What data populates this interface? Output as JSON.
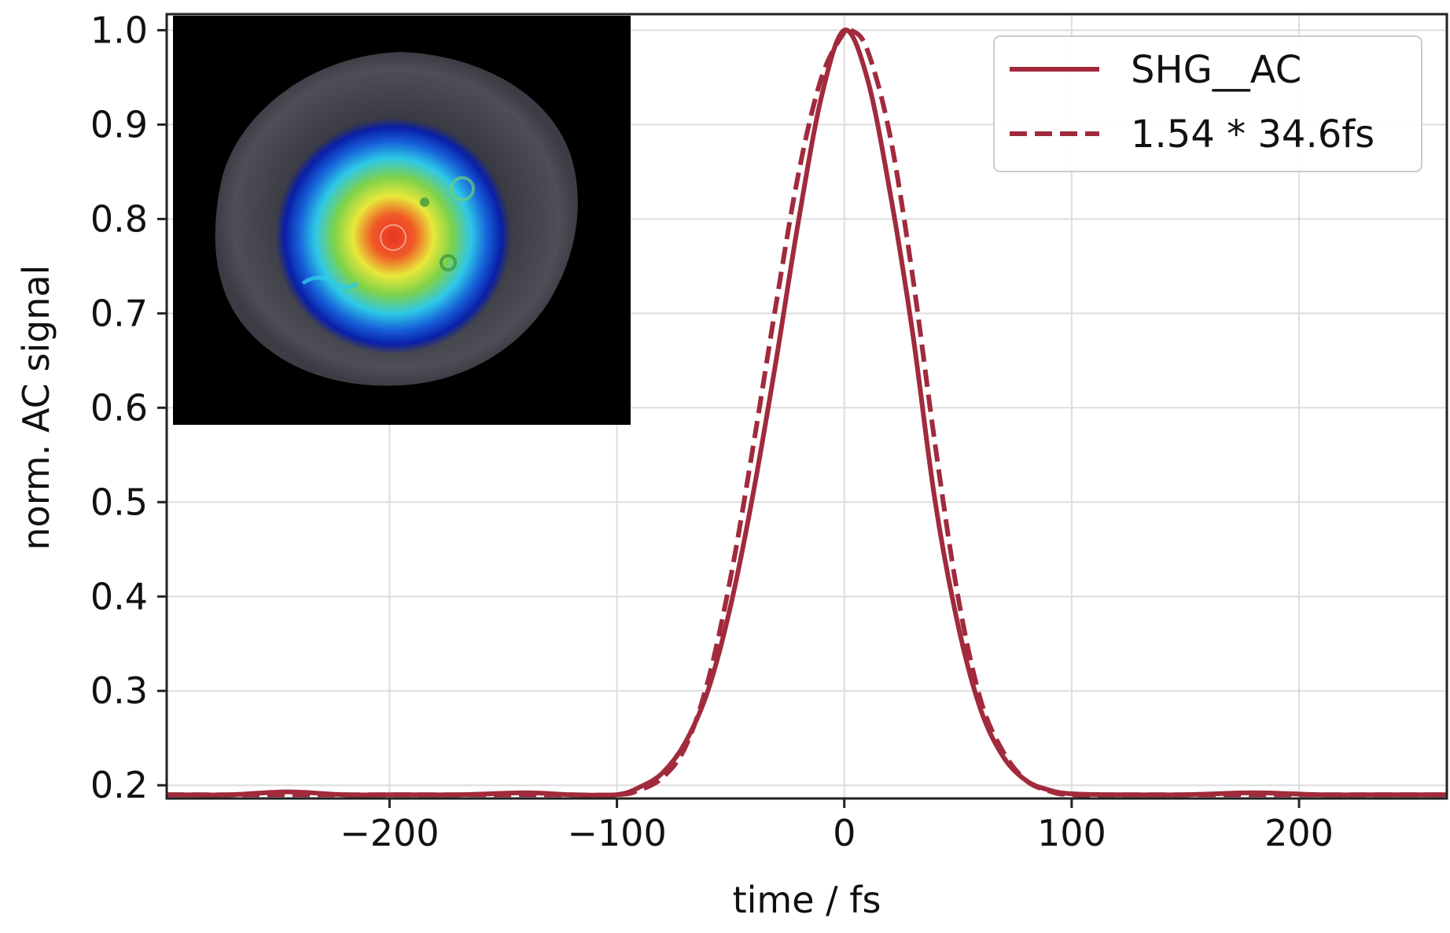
{
  "chart_data": {
    "type": "line",
    "title": "",
    "xlabel": "time / fs",
    "ylabel": "norm. AC signal",
    "xlim": [
      -298,
      265
    ],
    "ylim": [
      0.186,
      1.017
    ],
    "grid": true,
    "legend_position": "top-right",
    "x_ticks": [
      -200,
      -100,
      0,
      100,
      200
    ],
    "x_tick_labels": [
      "−200",
      "−100",
      "0",
      "100",
      "200"
    ],
    "y_ticks": [
      0.2,
      0.3,
      0.4,
      0.5,
      0.6,
      0.7,
      0.8,
      0.9,
      1.0
    ],
    "y_tick_labels": [
      "0.2",
      "0.3",
      "0.4",
      "0.5",
      "0.6",
      "0.7",
      "0.8",
      "0.9",
      "1.0"
    ],
    "series": [
      {
        "name": "SHG__AC",
        "style": "solid",
        "color": "#a12a3c",
        "x": [
          -298,
          -270,
          -245,
          -220,
          -200,
          -170,
          -140,
          -120,
          -100,
          -90,
          -80,
          -70,
          -60,
          -50,
          -40,
          -30,
          -20,
          -10,
          0,
          10,
          20,
          30,
          40,
          50,
          60,
          70,
          80,
          90,
          100,
          120,
          150,
          180,
          210,
          240,
          265
        ],
        "y": [
          0.19,
          0.19,
          0.193,
          0.19,
          0.19,
          0.19,
          0.192,
          0.19,
          0.19,
          0.198,
          0.213,
          0.245,
          0.3,
          0.39,
          0.51,
          0.65,
          0.8,
          0.93,
          1.0,
          0.95,
          0.83,
          0.68,
          0.5,
          0.37,
          0.28,
          0.23,
          0.205,
          0.195,
          0.191,
          0.19,
          0.19,
          0.192,
          0.19,
          0.19,
          0.19
        ]
      },
      {
        "name": "1.54 * 34.6fs",
        "style": "dashed",
        "color": "#a12a3c",
        "x": [
          -298,
          -200,
          -130,
          -100,
          -90,
          -80,
          -70,
          -60,
          -50,
          -40,
          -30,
          -20,
          -10,
          0,
          3,
          10,
          20,
          30,
          40,
          50,
          60,
          70,
          80,
          90,
          100,
          130,
          200,
          265
        ],
        "y": [
          0.19,
          0.19,
          0.19,
          0.19,
          0.195,
          0.208,
          0.24,
          0.31,
          0.42,
          0.56,
          0.71,
          0.85,
          0.95,
          0.998,
          1.0,
          0.98,
          0.89,
          0.74,
          0.56,
          0.4,
          0.29,
          0.235,
          0.205,
          0.194,
          0.19,
          0.19,
          0.19,
          0.19
        ]
      }
    ],
    "legend": [
      {
        "label": "SHG__AC",
        "style": "solid"
      },
      {
        "label": "1.54 * 34.6fs",
        "style": "dashed"
      }
    ]
  },
  "inset": {
    "description_icon": "beam-profile-image",
    "colors": {
      "background": "#000000",
      "halo": "#4a4a52",
      "blue": "#0a1fa8",
      "cyan": "#2ec8e8",
      "green": "#7ed24a",
      "yellow": "#e8e83a",
      "orange": "#f07a28",
      "red": "#e83424"
    }
  }
}
